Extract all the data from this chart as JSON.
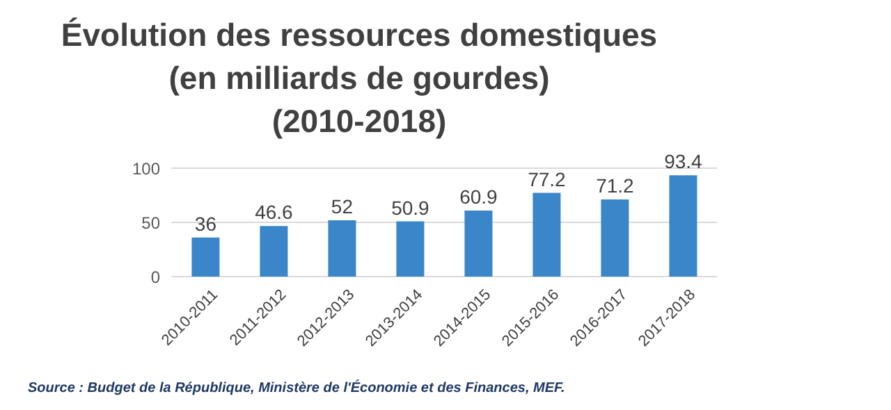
{
  "chart_data": {
    "type": "bar",
    "title": "Évolution des ressources domestiques\n(en milliards de gourdes)\n(2010-2018)",
    "categories": [
      "2010-2011",
      "2011-2012",
      "2012-2013",
      "2013-2014",
      "2014-2015",
      "2015-2016",
      "2016-2017",
      "2017-2018"
    ],
    "values": [
      36,
      46.6,
      52,
      50.9,
      60.9,
      77.2,
      71.2,
      93.4
    ],
    "color": "#3b86c9",
    "ylim": [
      0,
      100
    ],
    "yticks": [
      0,
      50,
      100
    ],
    "grid": "y",
    "data_labels": true,
    "annotations": [
      "Source : Budget de la République, Ministère de l'Économie et des Finances, MEF."
    ]
  }
}
